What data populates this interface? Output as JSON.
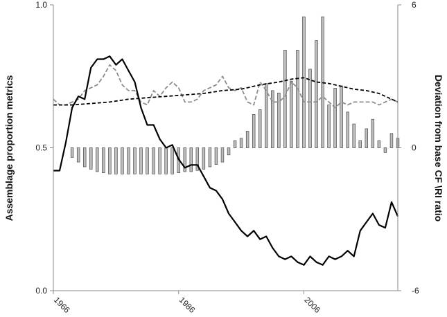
{
  "chart_data": {
    "type": "bar+line",
    "title": "",
    "xlabel": "",
    "ylabel": "Assemblage proportion metrics",
    "y2label": "Deviation from base CF \\RI ratio",
    "xlim": [
      1966,
      2021
    ],
    "ylim": [
      0.0,
      1.0
    ],
    "y2lim": [
      -6,
      6
    ],
    "x_ticks": [
      1966,
      1986,
      2006
    ],
    "x_tick_labels": [
      "1966",
      "1986",
      "2006"
    ],
    "y_ticks": [
      0.0,
      0.5,
      1.0
    ],
    "y_tick_labels": [
      "0.0",
      "0.5",
      "1.0"
    ],
    "y2_ticks": [
      -6,
      0,
      6
    ],
    "y2_tick_labels": [
      "-6",
      "0",
      "6"
    ],
    "grid": false,
    "legend": "none",
    "colors": {
      "bars_fill": "#bdbdbd",
      "bars_stroke": "#333333",
      "solid_line": "#000000",
      "dash_black": "#000000",
      "dash_grey": "#8c8c8c",
      "axis": "#888888"
    },
    "bar_series": {
      "axis": "right",
      "x": [
        1969,
        1970,
        1971,
        1972,
        1973,
        1974,
        1975,
        1976,
        1977,
        1978,
        1979,
        1980,
        1981,
        1982,
        1983,
        1984,
        1985,
        1986,
        1987,
        1988,
        1989,
        1990,
        1991,
        1992,
        1993,
        1994,
        1995,
        1996,
        1997,
        1998,
        1999,
        2000,
        2001,
        2002,
        2003,
        2004,
        2005,
        2006,
        2007,
        2008,
        2009,
        2010,
        2011,
        2012,
        2013,
        2014,
        2015,
        2016,
        2017,
        2018,
        2019,
        2020
      ],
      "values": [
        -0.4,
        -0.6,
        -0.8,
        -0.9,
        -1.0,
        -1.05,
        -1.1,
        -1.1,
        -1.1,
        -1.1,
        -1.1,
        -1.1,
        -1.1,
        -1.1,
        -1.1,
        -1.1,
        -1.1,
        -1.05,
        -1.0,
        -1.0,
        -0.95,
        -0.9,
        -0.8,
        -0.7,
        -0.6,
        -0.3,
        0.3,
        0.4,
        0.7,
        1.4,
        1.6,
        2.7,
        2.4,
        2.3,
        4.1,
        2.8,
        4.1,
        5.5,
        3.3,
        4.5,
        5.5,
        1.8,
        2.5,
        2.6,
        1.5,
        1.0,
        0.3,
        0.8,
        1.2,
        0.3,
        -0.2,
        0.6
      ],
      "trailing_x": [
        2021
      ],
      "trailing_values": [
        0.4
      ]
    },
    "series": [
      {
        "style": "solid-black",
        "axis": "left",
        "x": [
          1966,
          1967,
          1968,
          1969,
          1970,
          1971,
          1972,
          1973,
          1974,
          1975,
          1976,
          1977,
          1978,
          1979,
          1980,
          1981,
          1982,
          1983,
          1984,
          1985,
          1986,
          1987,
          1988,
          1989,
          1990,
          1991,
          1992,
          1993,
          1994,
          1995,
          1996,
          1997,
          1998,
          1999,
          2000,
          2001,
          2002,
          2003,
          2004,
          2005,
          2006,
          2007,
          2008,
          2009,
          2010,
          2011,
          2012,
          2013,
          2014,
          2015,
          2016,
          2017,
          2018,
          2019,
          2020,
          2021
        ],
        "values": [
          0.42,
          0.42,
          0.52,
          0.64,
          0.68,
          0.67,
          0.78,
          0.81,
          0.81,
          0.82,
          0.79,
          0.81,
          0.77,
          0.73,
          0.64,
          0.58,
          0.58,
          0.53,
          0.5,
          0.51,
          0.46,
          0.43,
          0.44,
          0.44,
          0.4,
          0.36,
          0.35,
          0.32,
          0.27,
          0.24,
          0.21,
          0.19,
          0.21,
          0.18,
          0.19,
          0.15,
          0.12,
          0.11,
          0.12,
          0.1,
          0.09,
          0.12,
          0.1,
          0.09,
          0.12,
          0.11,
          0.12,
          0.14,
          0.12,
          0.21,
          0.24,
          0.27,
          0.23,
          0.22,
          0.31,
          0.26
        ]
      },
      {
        "style": "dashed-black",
        "axis": "left",
        "x": [
          1966,
          1969,
          1972,
          1975,
          1978,
          1981,
          1984,
          1987,
          1990,
          1993,
          1996,
          1999,
          2002,
          2004,
          2006,
          2008,
          2010,
          2012,
          2014,
          2016,
          2018,
          2020,
          2021
        ],
        "values": [
          0.65,
          0.65,
          0.655,
          0.66,
          0.67,
          0.675,
          0.68,
          0.685,
          0.69,
          0.7,
          0.705,
          0.72,
          0.73,
          0.74,
          0.745,
          0.73,
          0.725,
          0.715,
          0.705,
          0.7,
          0.69,
          0.67,
          0.66
        ]
      },
      {
        "style": "dashed-grey",
        "axis": "left",
        "x": [
          1966,
          1967,
          1968,
          1969,
          1970,
          1971,
          1972,
          1973,
          1974,
          1975,
          1976,
          1977,
          1978,
          1979,
          1980,
          1981,
          1982,
          1983,
          1984,
          1985,
          1986,
          1987,
          1988,
          1989,
          1990,
          1991,
          1992,
          1993,
          1994,
          1995,
          1996,
          1997,
          1998,
          1999,
          2000,
          2001,
          2002,
          2003,
          2004,
          2005,
          2006,
          2007,
          2008,
          2009,
          2010,
          2011,
          2012,
          2013,
          2014,
          2015,
          2016,
          2017,
          2018,
          2019,
          2020,
          2021
        ],
        "values": [
          0.67,
          0.65,
          0.65,
          0.66,
          0.67,
          0.7,
          0.71,
          0.72,
          0.75,
          0.79,
          0.77,
          0.72,
          0.7,
          0.7,
          0.66,
          0.65,
          0.7,
          0.68,
          0.71,
          0.73,
          0.71,
          0.66,
          0.66,
          0.67,
          0.7,
          0.71,
          0.72,
          0.75,
          0.71,
          0.7,
          0.71,
          0.66,
          0.65,
          0.73,
          0.7,
          0.66,
          0.66,
          0.68,
          0.73,
          0.71,
          0.66,
          0.66,
          0.66,
          0.68,
          0.66,
          0.64,
          0.66,
          0.65,
          0.66,
          0.66,
          0.66,
          0.66,
          0.65,
          0.66,
          0.67,
          0.66
        ]
      }
    ]
  }
}
